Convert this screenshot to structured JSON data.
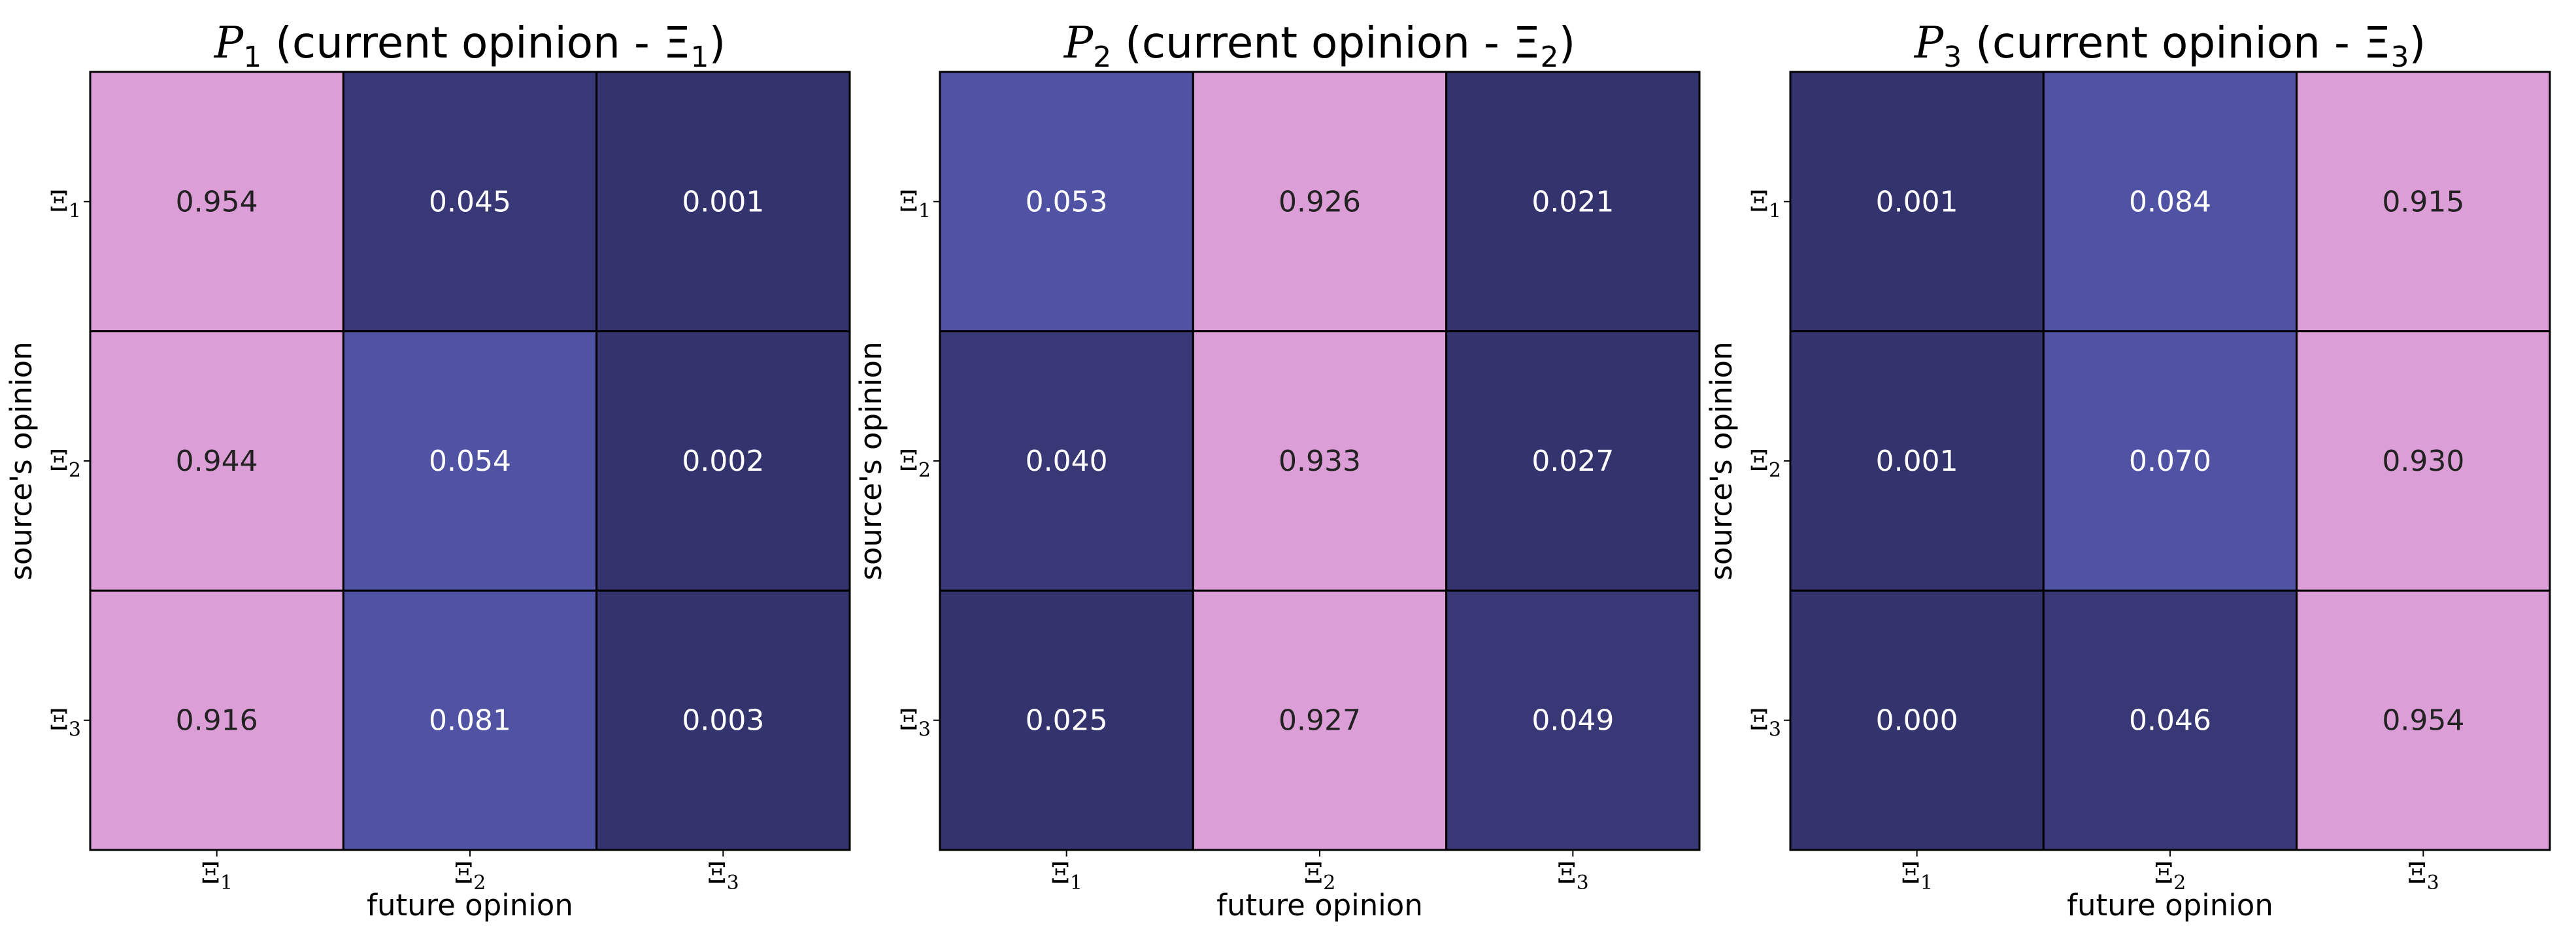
{
  "chart_data": [
    {
      "type": "heatmap",
      "title": {
        "symbol": "P",
        "subscript": "1",
        "text": " (current opinion - Ξ",
        "text_sub": "1",
        "text_end": ")"
      },
      "xlabel": "future opinion",
      "ylabel": "source's opinion",
      "x_categories": [
        [
          "Ξ",
          "1"
        ],
        [
          "Ξ",
          "2"
        ],
        [
          "Ξ",
          "3"
        ]
      ],
      "y_categories": [
        [
          "Ξ",
          "1"
        ],
        [
          "Ξ",
          "2"
        ],
        [
          "Ξ",
          "3"
        ]
      ],
      "values": [
        [
          0.954,
          0.045,
          0.001
        ],
        [
          0.944,
          0.054,
          0.002
        ],
        [
          0.916,
          0.081,
          0.003
        ]
      ],
      "labels": [
        [
          "0.954",
          "0.045",
          "0.001"
        ],
        [
          "0.944",
          "0.054",
          "0.002"
        ],
        [
          "0.916",
          "0.081",
          "0.003"
        ]
      ]
    },
    {
      "type": "heatmap",
      "title": {
        "symbol": "P",
        "subscript": "2",
        "text": " (current opinion - Ξ",
        "text_sub": "2",
        "text_end": ")"
      },
      "xlabel": "future opinion",
      "ylabel": "source's opinion",
      "x_categories": [
        [
          "Ξ",
          "1"
        ],
        [
          "Ξ",
          "2"
        ],
        [
          "Ξ",
          "3"
        ]
      ],
      "y_categories": [
        [
          "Ξ",
          "1"
        ],
        [
          "Ξ",
          "2"
        ],
        [
          "Ξ",
          "3"
        ]
      ],
      "values": [
        [
          0.053,
          0.926,
          0.021
        ],
        [
          0.04,
          0.933,
          0.027
        ],
        [
          0.025,
          0.927,
          0.049
        ]
      ],
      "labels": [
        [
          "0.053",
          "0.926",
          "0.021"
        ],
        [
          "0.040",
          "0.933",
          "0.027"
        ],
        [
          "0.025",
          "0.927",
          "0.049"
        ]
      ]
    },
    {
      "type": "heatmap",
      "title": {
        "symbol": "P",
        "subscript": "3",
        "text": " (current opinion - Ξ",
        "text_sub": "3",
        "text_end": ")"
      },
      "xlabel": "future opinion",
      "ylabel": "source's opinion",
      "x_categories": [
        [
          "Ξ",
          "1"
        ],
        [
          "Ξ",
          "2"
        ],
        [
          "Ξ",
          "3"
        ]
      ],
      "y_categories": [
        [
          "Ξ",
          "1"
        ],
        [
          "Ξ",
          "2"
        ],
        [
          "Ξ",
          "3"
        ]
      ],
      "values": [
        [
          0.001,
          0.084,
          0.915
        ],
        [
          0.001,
          0.07,
          0.93
        ],
        [
          0.0,
          0.046,
          0.954
        ]
      ],
      "labels": [
        [
          "0.001",
          "0.084",
          "0.915"
        ],
        [
          "0.001",
          "0.070",
          "0.930"
        ],
        [
          "0.000",
          "0.046",
          "0.954"
        ]
      ]
    }
  ],
  "colors": {
    "high": "#dc9ed6",
    "mid": "#5053a3",
    "low": "#383876",
    "lowest": "#33336e",
    "text_on_high": "#222222",
    "text_on_dark": "#ffffff",
    "grid": "#000000"
  }
}
